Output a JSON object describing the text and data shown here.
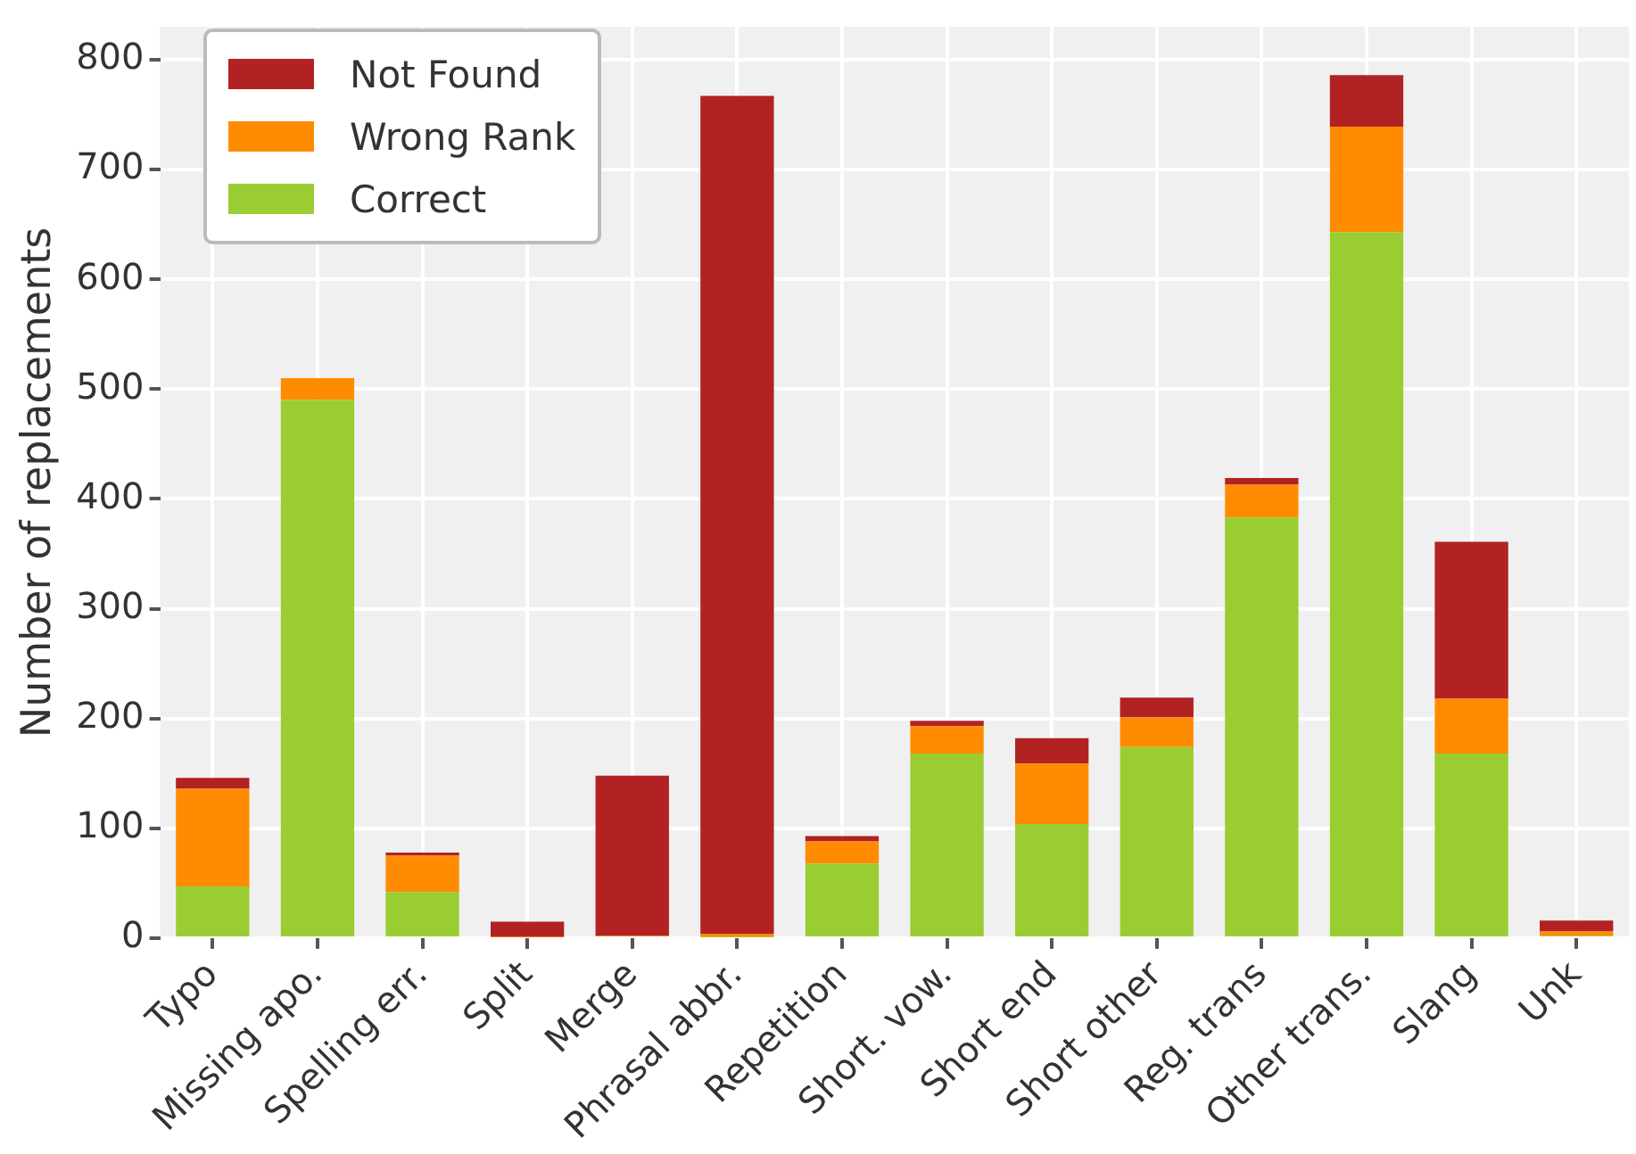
{
  "chart_data": {
    "type": "bar",
    "stacked": true,
    "ylabel": "Number of replacements",
    "categories": [
      "Typo",
      "Missing apo.",
      "Spelling err.",
      "Split",
      "Merge",
      "Phrasal abbr.",
      "Repetition",
      "Short. vow.",
      "Short end",
      "Short other",
      "Reg. trans",
      "Other trans.",
      "Slang",
      "Unk"
    ],
    "series": [
      {
        "name": "Correct",
        "color": "#9acd32",
        "values": [
          47,
          490,
          42,
          0,
          0,
          1,
          68,
          168,
          104,
          174,
          383,
          643,
          168,
          2
        ]
      },
      {
        "name": "Wrong Rank",
        "color": "#ff8c00",
        "values": [
          89,
          20,
          33,
          1,
          2,
          3,
          20,
          25,
          55,
          27,
          30,
          96,
          50,
          4
        ]
      },
      {
        "name": "Not Found",
        "color": "#b22222",
        "values": [
          10,
          0,
          3,
          14,
          146,
          763,
          5,
          5,
          23,
          18,
          6,
          47,
          143,
          10
        ]
      }
    ],
    "ylim": [
      0,
      830
    ],
    "yticks": [
      0,
      100,
      200,
      300,
      400,
      500,
      600,
      700,
      800
    ],
    "grid": true,
    "legend": "top left"
  }
}
